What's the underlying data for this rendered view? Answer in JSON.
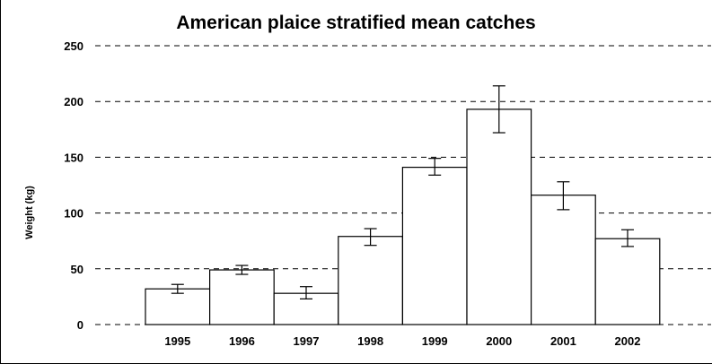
{
  "chart_data": {
    "type": "bar",
    "title": "American plaice stratified mean catches",
    "xlabel": "",
    "ylabel": "Weight (kg)",
    "ylim": [
      0,
      250
    ],
    "yticks": [
      0,
      50,
      100,
      150,
      200,
      250
    ],
    "grid": "horizontal dashed",
    "categories": [
      "1995",
      "1996",
      "1997",
      "1998",
      "1999",
      "2000",
      "2001",
      "2002"
    ],
    "values": [
      32,
      49,
      28,
      79,
      141,
      193,
      116,
      77
    ],
    "error_low": [
      28,
      45,
      23,
      71,
      134,
      172,
      103,
      70
    ],
    "error_high": [
      36,
      53,
      34,
      86,
      149,
      214,
      128,
      85
    ],
    "colors": {
      "bar_fill": "#ffffff",
      "bar_stroke": "#000000",
      "grid": "#000000"
    }
  }
}
